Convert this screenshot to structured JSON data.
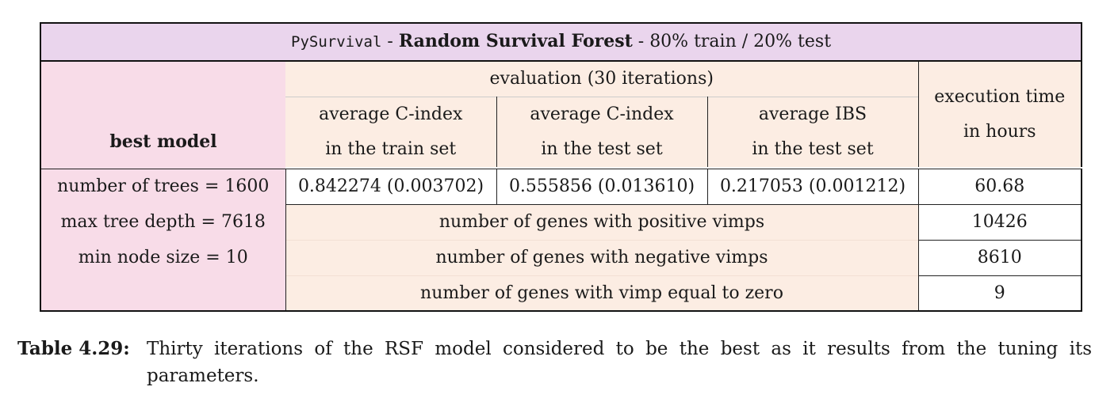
{
  "title": {
    "lib": "PySurvival",
    "sep1": " - ",
    "model": "Random Survival Forest",
    "sep2": " - ",
    "split": "80% train / 20% test"
  },
  "header": {
    "row_header": "best model",
    "group": "evaluation (30 iterations)",
    "columns": [
      {
        "line1": "average C-index",
        "line2": "in the train set"
      },
      {
        "line1": "average C-index",
        "line2": "in the test set"
      },
      {
        "line1": "average IBS",
        "line2": "in the test set"
      }
    ],
    "exec": {
      "line1": "execution time",
      "line2": "in hours"
    }
  },
  "params": [
    "number of trees = 1600",
    "max tree depth = 7618",
    "min node size = 10"
  ],
  "results": {
    "c_index_train": "0.842274 (0.003702)",
    "c_index_test": "0.555856 (0.013610)",
    "ibs_test": "0.217053 (0.001212)",
    "exec_time": "60.68"
  },
  "vimps": [
    {
      "label": "number of genes with positive vimps",
      "value": "10426"
    },
    {
      "label": "number of genes with negative vimps",
      "value": "8610"
    },
    {
      "label": "number of genes with vimp equal to zero",
      "value": "9"
    }
  ],
  "caption": {
    "label": "Table 4.29:",
    "text": "Thirty iterations of the RSF model considered to be the best as it results from the tuning its parameters."
  },
  "colors": {
    "title_bg": "#ead5ed",
    "param_bg": "#f8dce8",
    "header_bg": "#fcede3"
  }
}
